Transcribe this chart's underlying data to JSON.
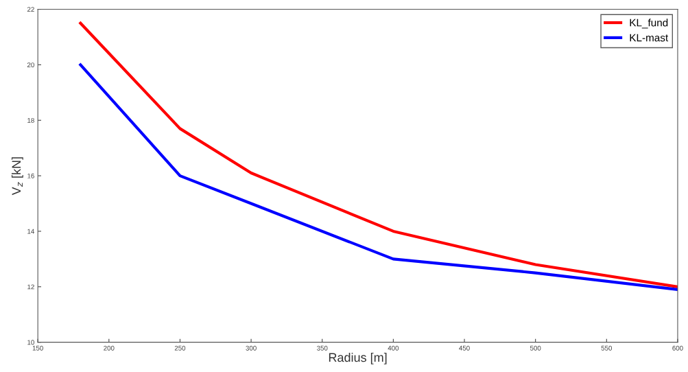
{
  "chart_data": {
    "type": "line",
    "xlabel": "Radius [m]",
    "ylabel": "V$_{z}$ [kN]",
    "x": [
      180,
      250,
      300,
      400,
      500,
      600
    ],
    "series": [
      {
        "name": "KL_fund",
        "color": "#ff0000",
        "values": [
          21.5,
          17.7,
          16.1,
          14.0,
          12.8,
          12.0
        ]
      },
      {
        "name": "KL-mast",
        "color": "#0000ff",
        "values": [
          20.0,
          16.0,
          15.0,
          13.0,
          12.5,
          11.9
        ]
      }
    ],
    "xlim": [
      150,
      600
    ],
    "ylim": [
      10,
      22
    ],
    "xticks": [
      150,
      200,
      250,
      300,
      350,
      400,
      450,
      500,
      550,
      600
    ],
    "yticks": [
      10,
      12,
      14,
      16,
      18,
      20,
      22
    ],
    "grid": false,
    "legend": "top right",
    "marker": "none",
    "line_style": "solid"
  }
}
